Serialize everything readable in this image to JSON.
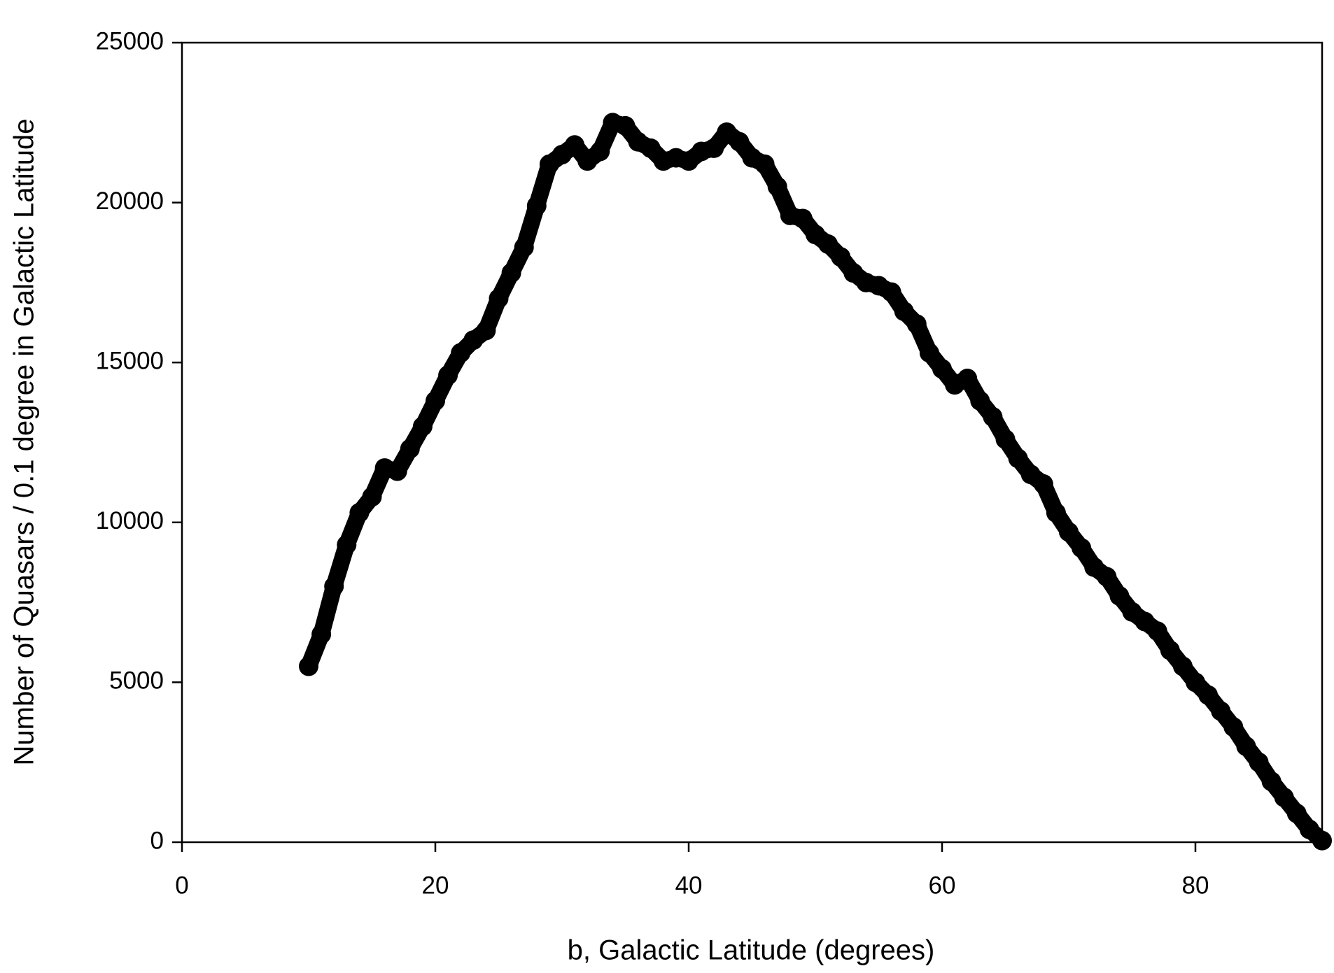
{
  "chart_data": {
    "type": "scatter",
    "xlabel": "b, Galactic Latitude (degrees)",
    "ylabel": "Number of Quasars / 0.1 degree in Galactic Latitude",
    "color": "#000000",
    "xlim": [
      0,
      90
    ],
    "xticks": [
      0,
      20,
      40,
      60,
      80
    ],
    "ylim": [
      0,
      25000
    ],
    "yticks": [
      0,
      5000,
      10000,
      15000,
      20000,
      25000
    ],
    "x": [
      10,
      11,
      12,
      13,
      14,
      15,
      16,
      17,
      18,
      19,
      20,
      21,
      22,
      23,
      24,
      25,
      26,
      27,
      28,
      29,
      30,
      31,
      32,
      33,
      34,
      35,
      36,
      37,
      38,
      39,
      40,
      41,
      42,
      43,
      44,
      45,
      46,
      47,
      48,
      49,
      50,
      51,
      52,
      53,
      54,
      55,
      56,
      57,
      58,
      59,
      60,
      61,
      62,
      63,
      64,
      65,
      66,
      67,
      68,
      69,
      70,
      71,
      72,
      73,
      74,
      75,
      76,
      77,
      78,
      79,
      80,
      81,
      82,
      83,
      84,
      85,
      86,
      87,
      88,
      89,
      90
    ],
    "values": [
      5500,
      6500,
      8000,
      9300,
      10300,
      10800,
      11700,
      11600,
      12300,
      13000,
      13800,
      14600,
      15300,
      15700,
      16000,
      17000,
      17800,
      18600,
      19900,
      21200,
      21500,
      21800,
      21300,
      21600,
      22500,
      22400,
      21900,
      21700,
      21300,
      21400,
      21300,
      21600,
      21700,
      22200,
      21900,
      21400,
      21200,
      20500,
      19600,
      19500,
      19000,
      18700,
      18300,
      17800,
      17500,
      17400,
      17200,
      16600,
      16200,
      15300,
      14800,
      14300,
      14500,
      13800,
      13300,
      12600,
      12000,
      11500,
      11200,
      10300,
      9700,
      9200,
      8600,
      8300,
      7700,
      7200,
      6900,
      6600,
      6000,
      5500,
      5000,
      4600,
      4100,
      3600,
      3000,
      2500,
      1900,
      1400,
      900,
      400,
      50
    ]
  }
}
